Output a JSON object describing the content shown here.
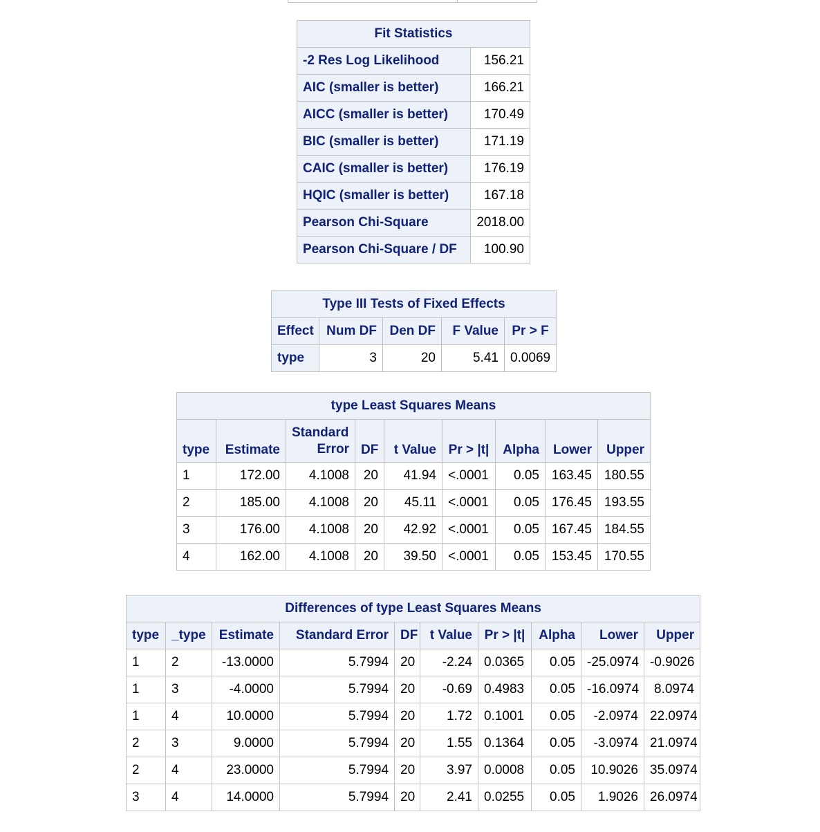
{
  "fit_statistics": {
    "title": "Fit Statistics",
    "rows": [
      {
        "label": "-2 Res Log Likelihood",
        "value": "156.21"
      },
      {
        "label": "AIC (smaller is better)",
        "value": "166.21"
      },
      {
        "label": "AICC (smaller is better)",
        "value": "170.49"
      },
      {
        "label": "BIC (smaller is better)",
        "value": "171.19"
      },
      {
        "label": "CAIC (smaller is better)",
        "value": "176.19"
      },
      {
        "label": "HQIC (smaller is better)",
        "value": "167.18"
      },
      {
        "label": "Pearson Chi-Square",
        "value": "2018.00"
      },
      {
        "label": "Pearson Chi-Square / DF",
        "value": "100.90"
      }
    ]
  },
  "type3": {
    "title": "Type III Tests of Fixed Effects",
    "headers": [
      "Effect",
      "Num DF",
      "Den DF",
      "F Value",
      "Pr > F"
    ],
    "rows": [
      [
        "type",
        "3",
        "20",
        "5.41",
        "0.0069"
      ]
    ]
  },
  "lsmeans": {
    "title": "type Least Squares Means",
    "headers": [
      "type",
      "Estimate",
      "Standard Error",
      "DF",
      "t Value",
      "Pr > |t|",
      "Alpha",
      "Lower",
      "Upper"
    ],
    "headers_split": {
      "std_line1": "Standard",
      "std_line2": "Error"
    },
    "rows": [
      [
        "1",
        "172.00",
        "4.1008",
        "20",
        "41.94",
        "<.0001",
        "0.05",
        "163.45",
        "180.55"
      ],
      [
        "2",
        "185.00",
        "4.1008",
        "20",
        "45.11",
        "<.0001",
        "0.05",
        "176.45",
        "193.55"
      ],
      [
        "3",
        "176.00",
        "4.1008",
        "20",
        "42.92",
        "<.0001",
        "0.05",
        "167.45",
        "184.55"
      ],
      [
        "4",
        "162.00",
        "4.1008",
        "20",
        "39.50",
        "<.0001",
        "0.05",
        "153.45",
        "170.55"
      ]
    ]
  },
  "diffs": {
    "title": "Differences of type Least Squares Means",
    "headers": [
      "type",
      "_type",
      "Estimate",
      "Standard Error",
      "DF",
      "t Value",
      "Pr > |t|",
      "Alpha",
      "Lower",
      "Upper"
    ],
    "rows": [
      [
        "1",
        "2",
        "-13.0000",
        "5.7994",
        "20",
        "-2.24",
        "0.0365",
        "0.05",
        "-25.0974",
        "-0.9026"
      ],
      [
        "1",
        "3",
        "-4.0000",
        "5.7994",
        "20",
        "-0.69",
        "0.4983",
        "0.05",
        "-16.0974",
        "8.0974"
      ],
      [
        "1",
        "4",
        "10.0000",
        "5.7994",
        "20",
        "1.72",
        "0.1001",
        "0.05",
        "-2.0974",
        "22.0974"
      ],
      [
        "2",
        "3",
        "9.0000",
        "5.7994",
        "20",
        "1.55",
        "0.1364",
        "0.05",
        "-3.0974",
        "21.0974"
      ],
      [
        "2",
        "4",
        "23.0000",
        "5.7994",
        "20",
        "3.97",
        "0.0008",
        "0.05",
        "10.9026",
        "35.0974"
      ],
      [
        "3",
        "4",
        "14.0000",
        "5.7994",
        "20",
        "2.41",
        "0.0255",
        "0.05",
        "1.9026",
        "26.0974"
      ]
    ]
  },
  "colors": {
    "header_bg": "#edf2f9",
    "header_text": "#112277",
    "border": "#c1c1c1"
  }
}
